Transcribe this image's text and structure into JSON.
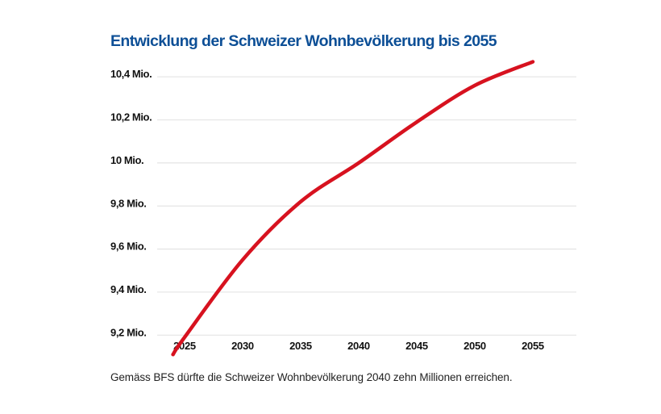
{
  "chart_data": {
    "type": "line",
    "title": "Entwicklung der Schweizer Wohnbevölkerung bis 2055",
    "caption": "Gemäss BFS dürfte die Schweizer Wohnbevölkerung 2040 zehn Millionen erreichen.",
    "xlabel": "",
    "ylabel": "",
    "x_ticks": [
      "2025",
      "2030",
      "2035",
      "2040",
      "2045",
      "2050",
      "2055"
    ],
    "y_ticks": [
      {
        "value": 9.2,
        "label": "9,2 Mio."
      },
      {
        "value": 9.4,
        "label": "9,4 Mio."
      },
      {
        "value": 9.6,
        "label": "9,6 Mio."
      },
      {
        "value": 9.8,
        "label": "9,8 Mio."
      },
      {
        "value": 10.0,
        "label": "10 Mio."
      },
      {
        "value": 10.2,
        "label": "10,2 Mio."
      },
      {
        "value": 10.4,
        "label": "10,4 Mio."
      }
    ],
    "xlim": [
      2024,
      2055
    ],
    "ylim": [
      9.1,
      10.47
    ],
    "grid": "horizontal",
    "legend": "none",
    "series": [
      {
        "color": "#d7121f",
        "x": [
          2024,
          2025,
          2030,
          2035,
          2040,
          2045,
          2050,
          2055
        ],
        "y": [
          9.11,
          9.19,
          9.55,
          9.82,
          10.0,
          10.19,
          10.36,
          10.47
        ]
      }
    ]
  },
  "colors": {
    "title": "#0d4f96",
    "line": "#d7121f",
    "grid": "#e4e4e4"
  }
}
